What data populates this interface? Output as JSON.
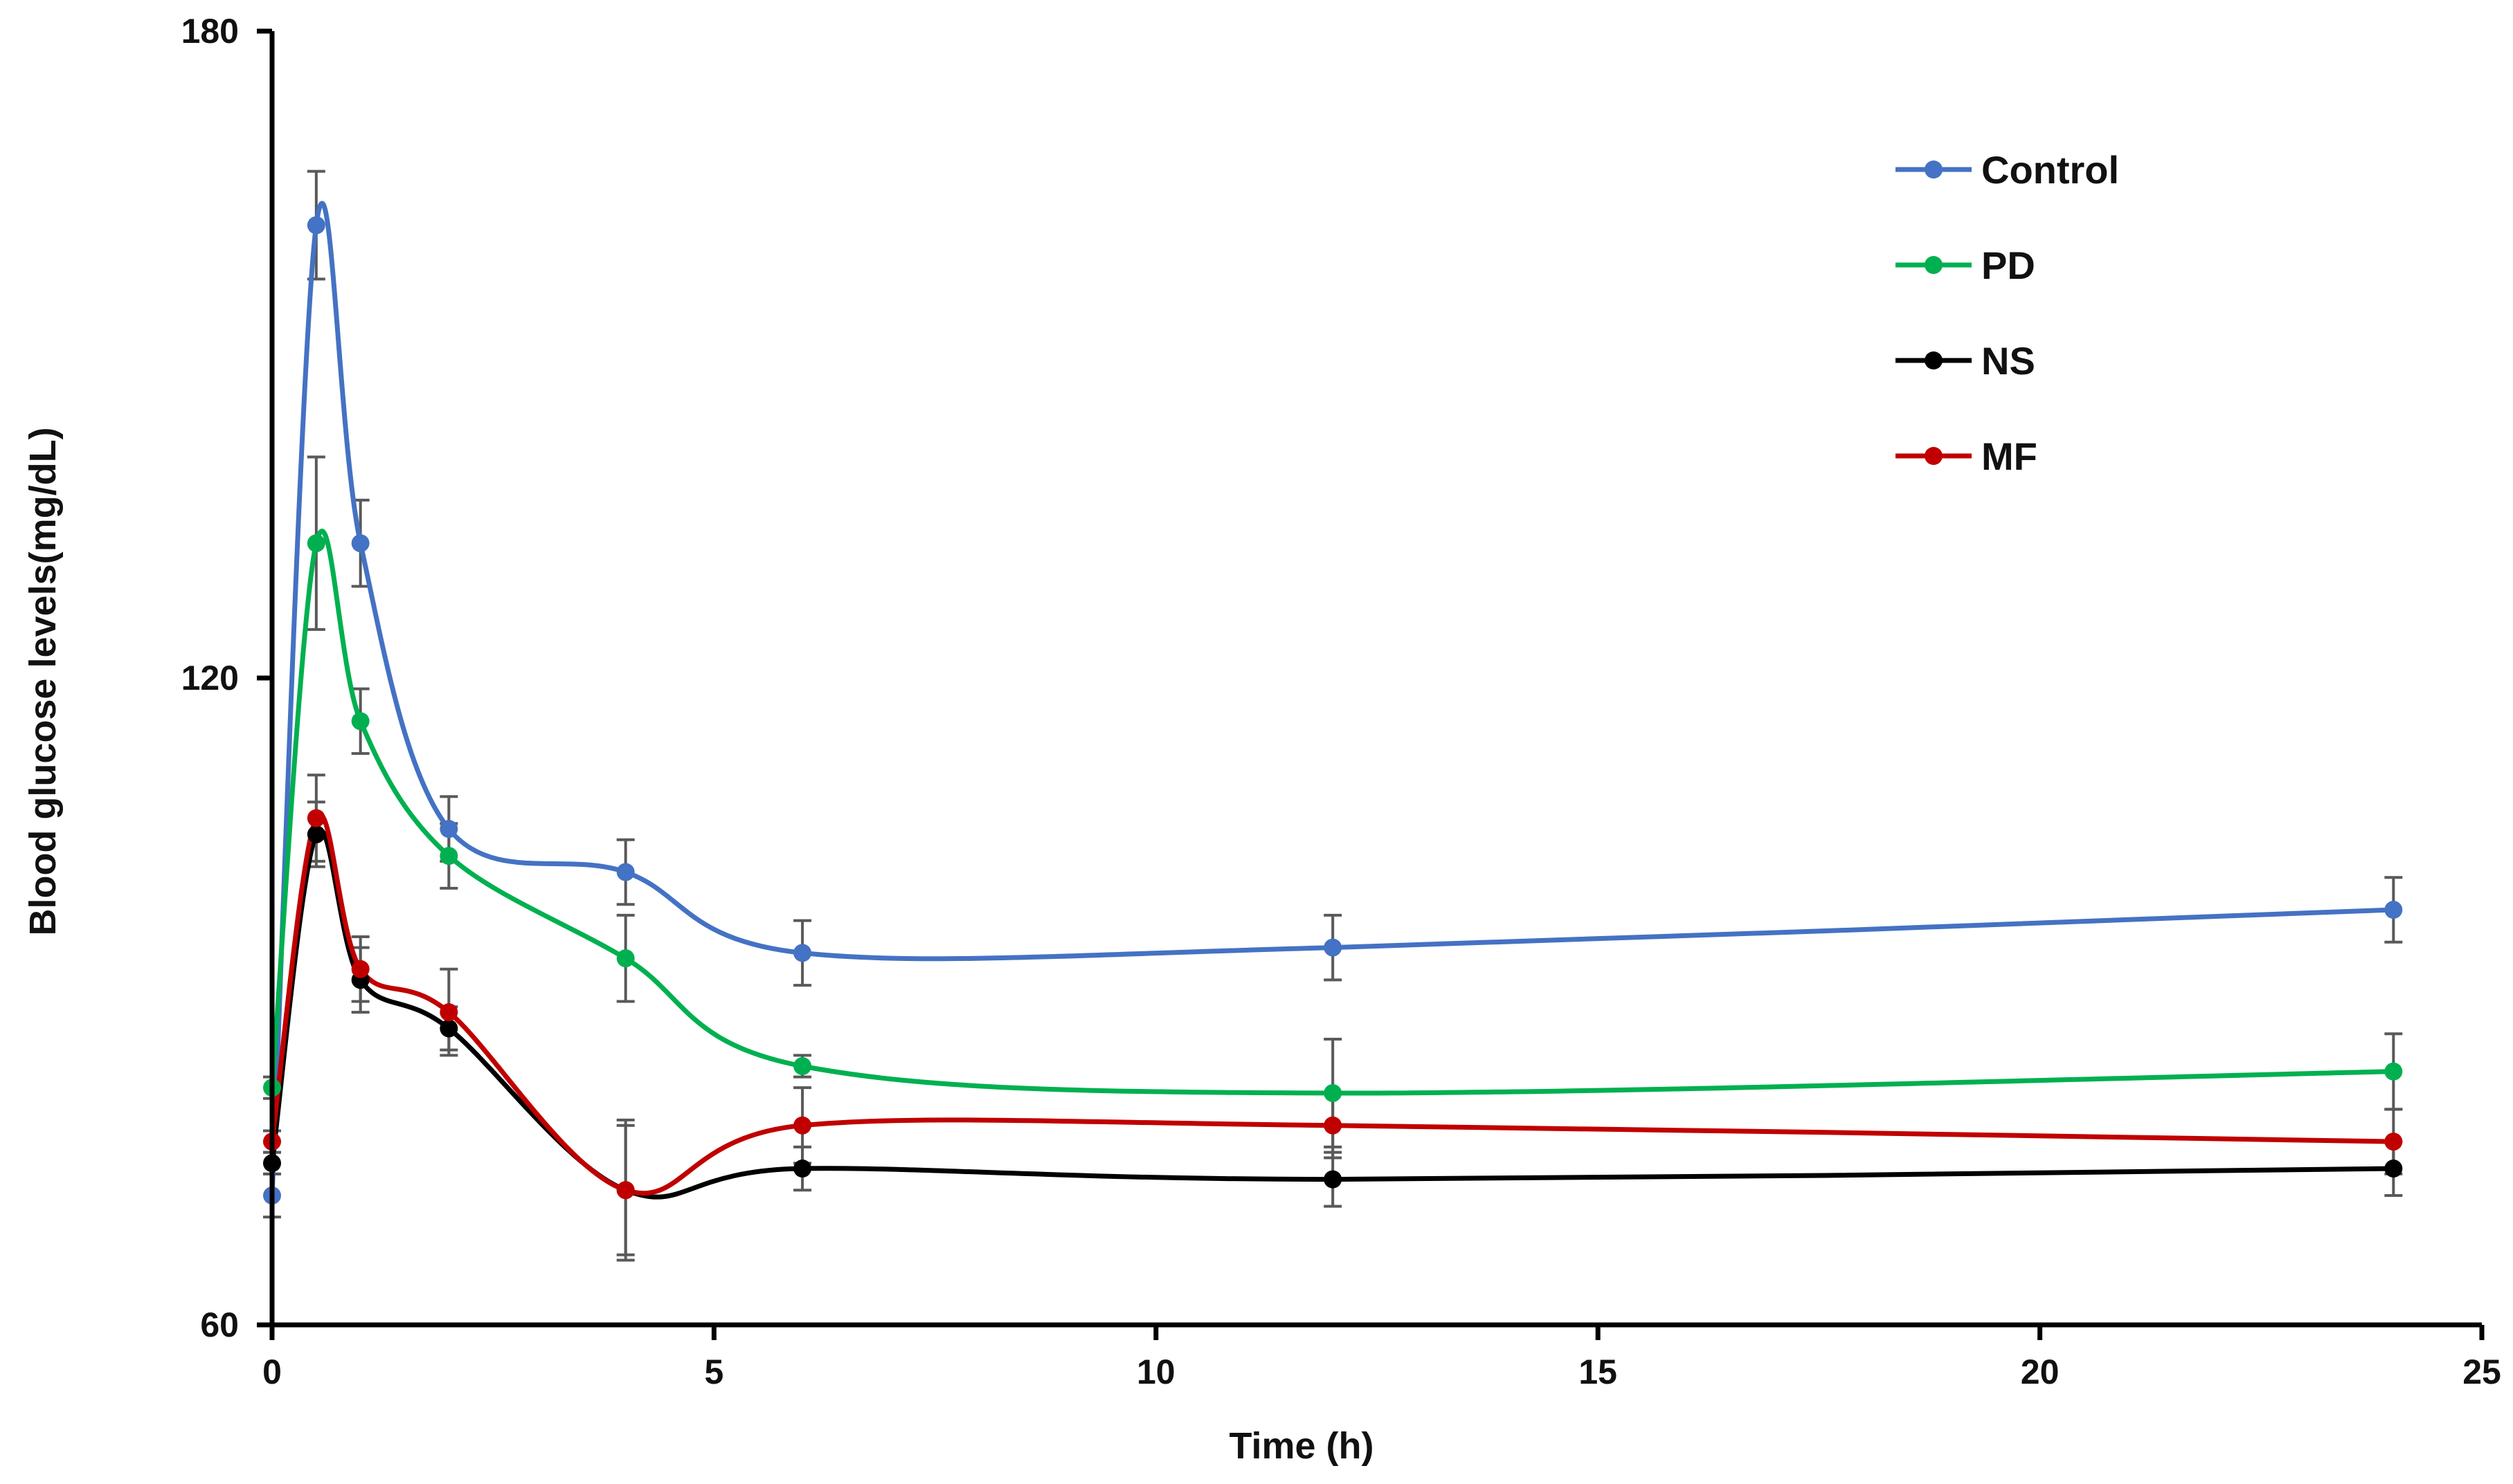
{
  "chart_data": {
    "type": "line",
    "title": "",
    "xlabel": "Time (h)",
    "ylabel": "Blood glucose levels(mg/dL)",
    "xlim": [
      0,
      25
    ],
    "ylim": [
      60,
      180
    ],
    "xticks": [
      0,
      5,
      10,
      15,
      20,
      25
    ],
    "yticks": [
      60,
      120,
      180
    ],
    "legend_position": "top-right",
    "grid": false,
    "smooth": true,
    "series": [
      {
        "name": "Control",
        "color": "#4472C4",
        "x": [
          0,
          0.5,
          1,
          2,
          4,
          6,
          12,
          24
        ],
        "y": [
          72,
          162,
          132.5,
          106,
          102,
          94.5,
          95,
          98.5
        ],
        "error": [
          2,
          5,
          4,
          3,
          3,
          3,
          3,
          3
        ]
      },
      {
        "name": "PD",
        "color": "#00B050",
        "x": [
          0,
          0.5,
          1,
          2,
          4,
          6,
          12,
          24
        ],
        "y": [
          82,
          132.5,
          116,
          103.5,
          94,
          84,
          81.5,
          83.5
        ],
        "error": [
          1,
          8,
          3,
          3,
          4,
          1,
          5,
          3.5
        ]
      },
      {
        "name": "NS",
        "color": "#000000",
        "x": [
          0,
          0.5,
          1,
          2,
          4,
          6,
          12,
          24
        ],
        "y": [
          75,
          105.5,
          92,
          87.5,
          72.5,
          74.5,
          73.5,
          74.5
        ],
        "error": [
          1,
          3,
          3,
          2,
          6,
          2,
          2.5,
          2.5
        ]
      },
      {
        "name": "MF",
        "color": "#C00000",
        "x": [
          0,
          0.5,
          1,
          2,
          4,
          6,
          12,
          24
        ],
        "y": [
          77,
          107,
          93,
          89,
          72.5,
          78.5,
          78.5,
          77
        ],
        "error": [
          1,
          4,
          3,
          4,
          6.5,
          3.5,
          3,
          3
        ]
      }
    ]
  }
}
